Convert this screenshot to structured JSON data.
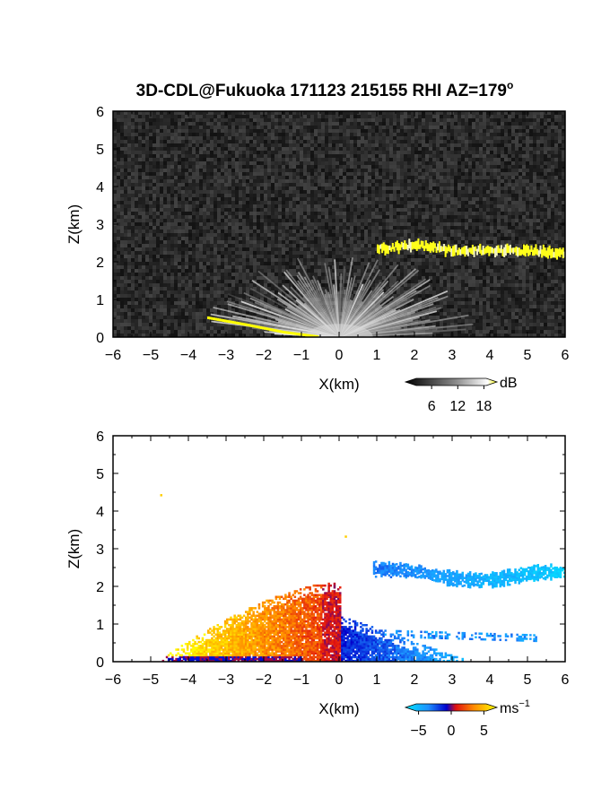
{
  "title_main": "3D-CDL@Fukuoka 171123 215155 RHI AZ=179",
  "title_sup": "o",
  "chart_data": [
    {
      "type": "heatmap",
      "name": "snr",
      "xlabel": "X(km)",
      "ylabel": "Z(km)",
      "xlim": [
        -6,
        6
      ],
      "ylim": [
        0,
        6
      ],
      "x_ticks": [
        -6,
        -5,
        -4,
        -3,
        -2,
        -1,
        0,
        1,
        2,
        3,
        4,
        5,
        6
      ],
      "y_ticks": [
        0,
        1,
        2,
        3,
        4,
        5,
        6
      ],
      "colorbar": {
        "unit": "dB",
        "ticks": [
          6,
          12,
          18
        ],
        "range": [
          0,
          21
        ]
      },
      "cloud_layer": {
        "x": [
          1,
          2,
          3,
          4,
          5,
          6
        ],
        "z": [
          2.35,
          2.45,
          2.3,
          2.3,
          2.3,
          2.2
        ]
      },
      "ground_echo": {
        "x": [
          -3.5,
          -2.5,
          -1.5,
          -0.6
        ],
        "z": [
          0.5,
          0.32,
          0.12,
          0.0
        ]
      }
    },
    {
      "type": "heatmap",
      "name": "doppler_velocity",
      "xlabel": "X(km)",
      "ylabel": "Z(km)",
      "xlim": [
        -6,
        6
      ],
      "ylim": [
        0,
        6
      ],
      "x_ticks": [
        -6,
        -5,
        -4,
        -3,
        -2,
        -1,
        0,
        1,
        2,
        3,
        4,
        5,
        6
      ],
      "y_ticks": [
        0,
        1,
        2,
        3,
        4,
        5,
        6
      ],
      "colorbar": {
        "unit": "ms",
        "unit_sup": "−1",
        "ticks": [
          "−5",
          "0",
          "5"
        ],
        "range": [
          -7,
          7
        ]
      }
    }
  ]
}
